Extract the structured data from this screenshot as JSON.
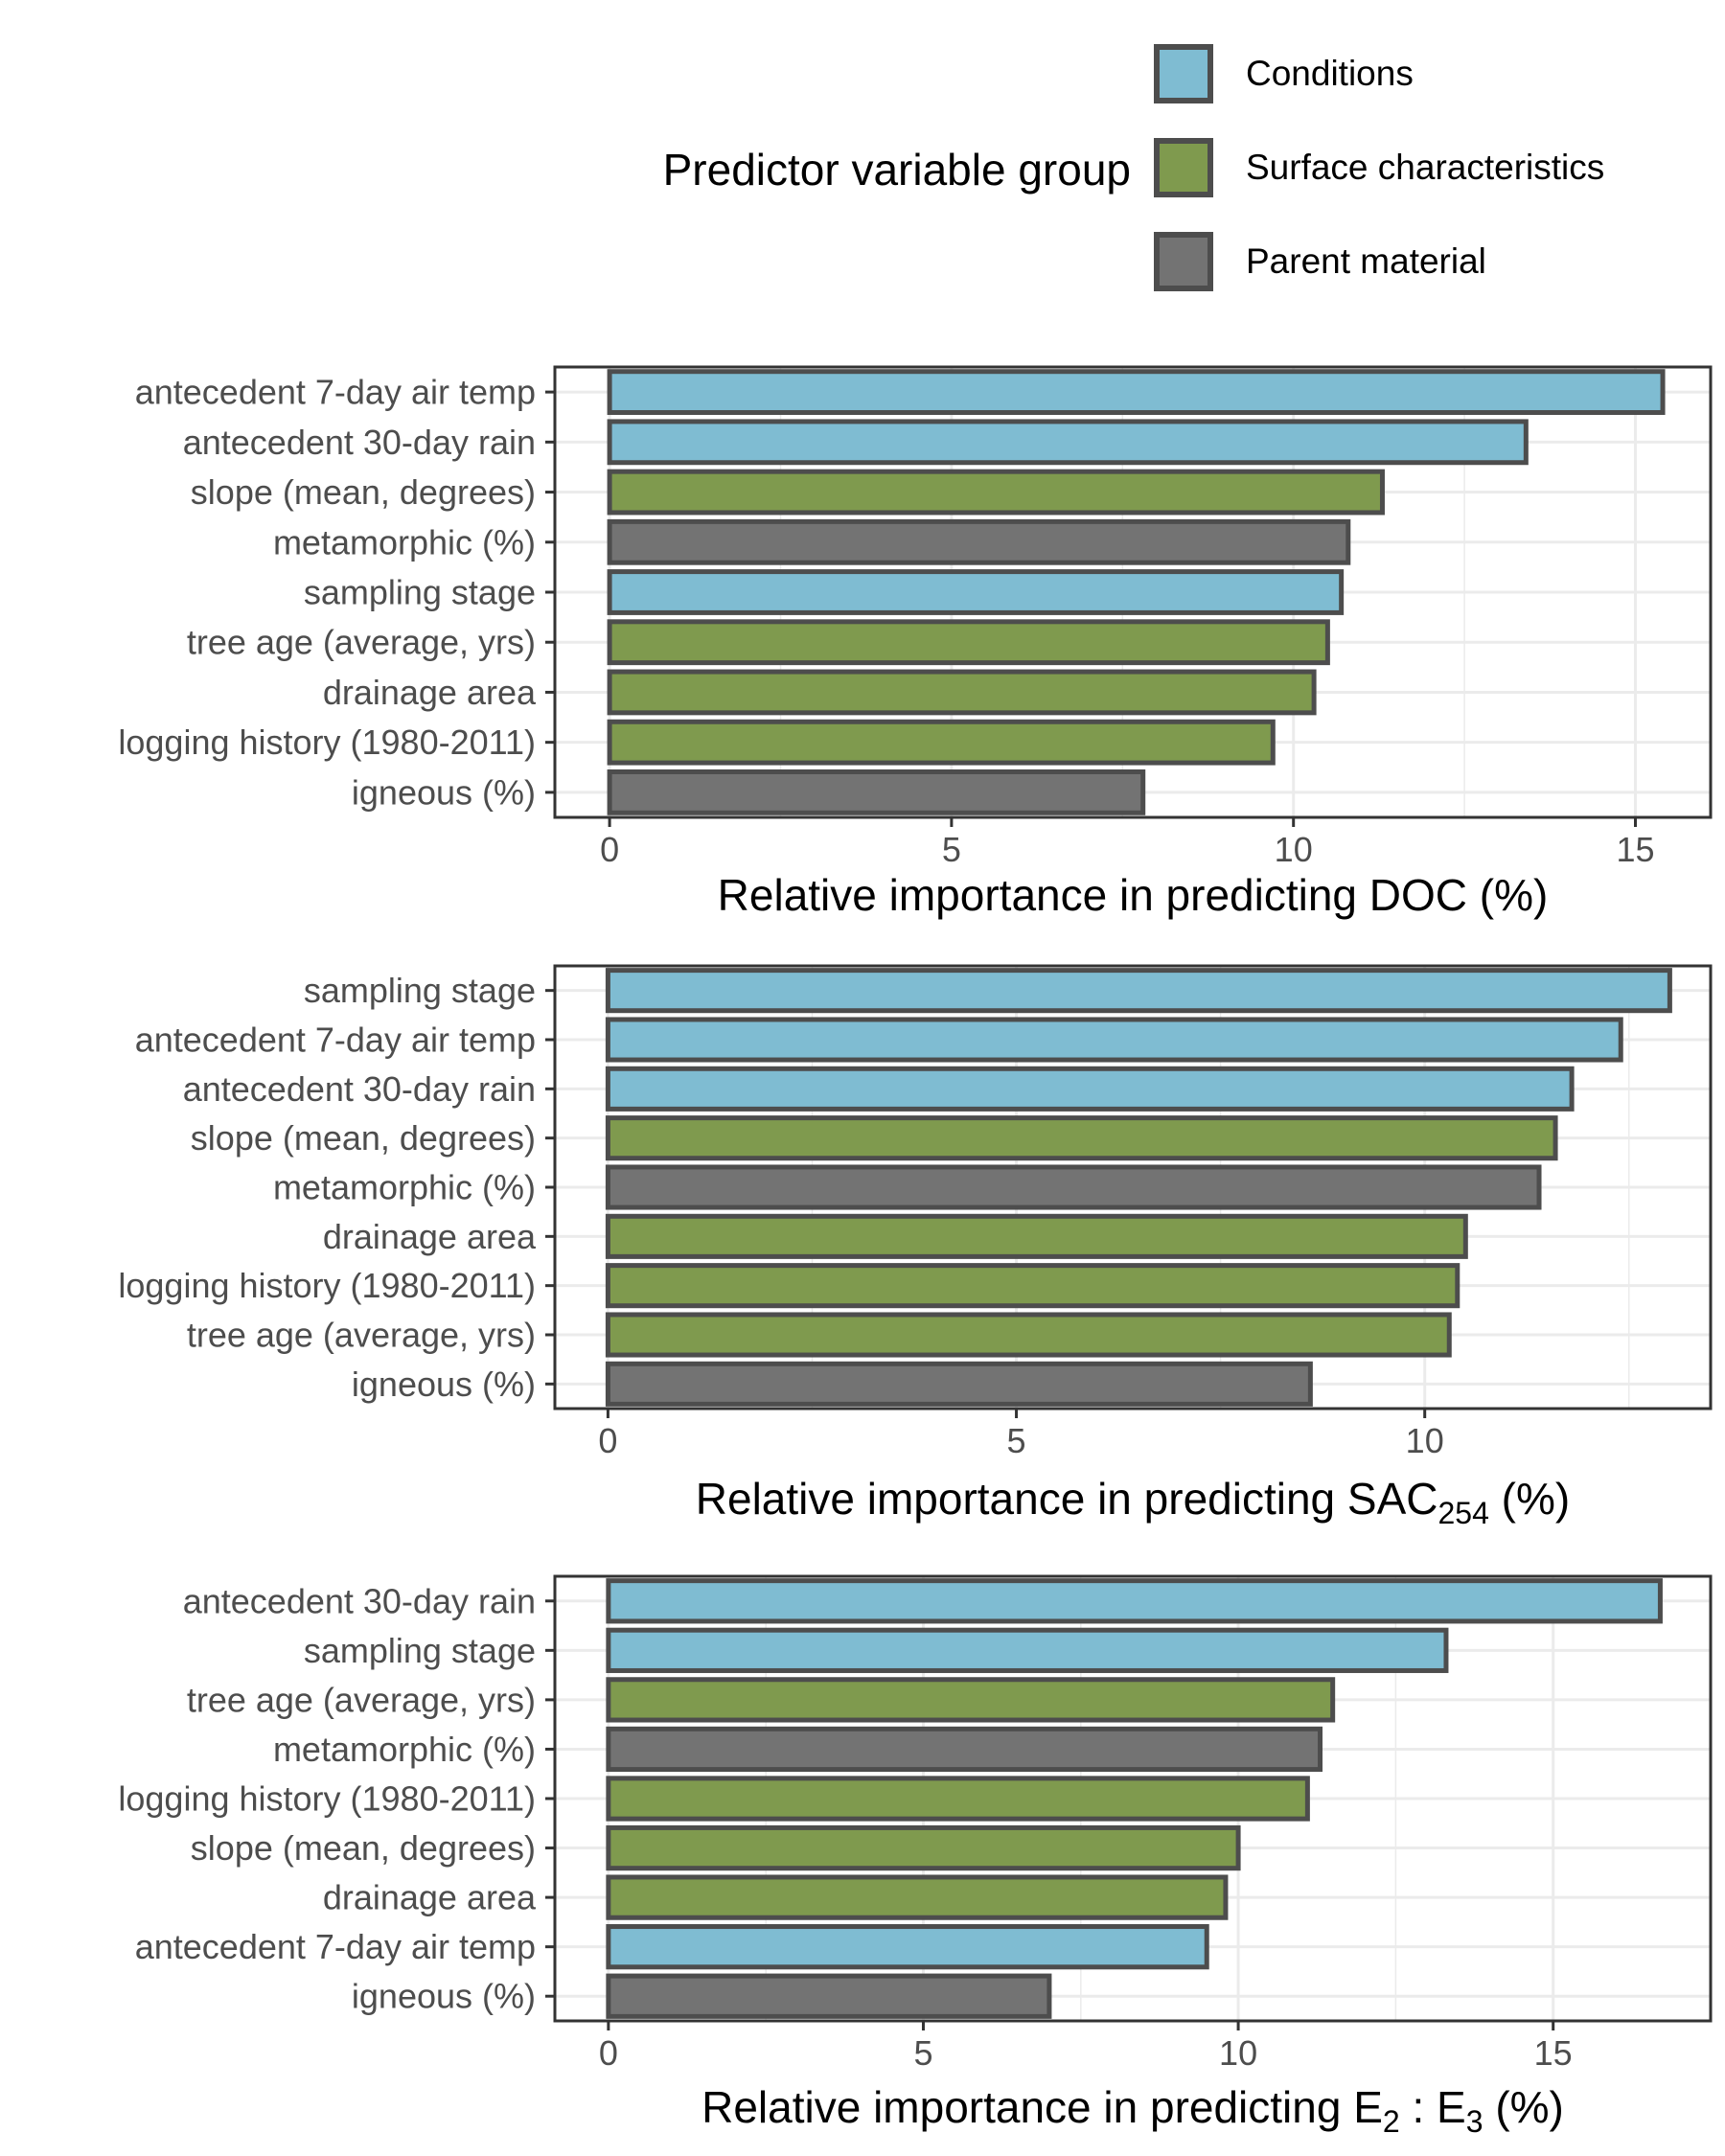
{
  "legend": {
    "title": "Predictor variable group",
    "items": [
      {
        "group": "Conditions",
        "label": "Conditions",
        "color": "#7fbcd2"
      },
      {
        "group": "Surface",
        "label": "Surface characteristics",
        "color": "#7f9a4e"
      },
      {
        "group": "Parent",
        "label": "Parent material",
        "color": "#737373"
      }
    ]
  },
  "colors": {
    "bar_outline": "#4d4d4d",
    "grid": "#ebebeb",
    "panel_border": "#333333",
    "tick_label": "#4d4d4d",
    "axis_title": "#000000"
  },
  "chart_data": [
    {
      "type": "bar",
      "orientation": "horizontal",
      "xlabel": "Relative importance in predicting DOC (%)",
      "xlabel_parts": [
        {
          "text": "Relative importance in predicting DOC (%)"
        }
      ],
      "xlim": [
        -0.8,
        16.1
      ],
      "xticks": [
        0,
        5,
        10,
        15
      ],
      "grid": true,
      "categories": [
        "antecedent 7-day air temp",
        "antecedent 30-day rain",
        "slope (mean, degrees)",
        "metamorphic (%)",
        "sampling stage",
        "tree age (average, yrs)",
        "drainage area",
        "logging history (1980-2011)",
        "igneous (%)"
      ],
      "values": [
        15.4,
        13.4,
        11.3,
        10.8,
        10.7,
        10.5,
        10.3,
        9.7,
        7.8
      ],
      "groups": [
        "Conditions",
        "Conditions",
        "Surface",
        "Parent",
        "Conditions",
        "Surface",
        "Surface",
        "Surface",
        "Parent"
      ]
    },
    {
      "type": "bar",
      "orientation": "horizontal",
      "xlabel": "Relative importance in predicting SAC254 (%)",
      "xlabel_parts": [
        {
          "text": "Relative importance in predicting SAC"
        },
        {
          "text": "254",
          "sub": true
        },
        {
          "text": " (%)"
        }
      ],
      "xlim": [
        -0.65,
        13.5
      ],
      "xticks": [
        0,
        5,
        10
      ],
      "grid": true,
      "categories": [
        "sampling stage",
        "antecedent 7-day air temp",
        "antecedent 30-day rain",
        "slope (mean, degrees)",
        "metamorphic (%)",
        "drainage area",
        "logging history (1980-2011)",
        "tree age (average, yrs)",
        "igneous (%)"
      ],
      "values": [
        13.0,
        12.4,
        11.8,
        11.6,
        11.4,
        10.5,
        10.4,
        10.3,
        8.6
      ],
      "groups": [
        "Conditions",
        "Conditions",
        "Conditions",
        "Surface",
        "Parent",
        "Surface",
        "Surface",
        "Surface",
        "Parent"
      ]
    },
    {
      "type": "bar",
      "orientation": "horizontal",
      "xlabel": "Relative importance in predicting E2 : E3 (%)",
      "xlabel_parts": [
        {
          "text": "Relative importance in predicting E"
        },
        {
          "text": "2",
          "sub": true
        },
        {
          "text": " : E"
        },
        {
          "text": "3",
          "sub": true
        },
        {
          "text": " (%)"
        }
      ],
      "xlim": [
        -0.85,
        17.5
      ],
      "xticks": [
        0,
        5,
        10,
        15
      ],
      "grid": true,
      "categories": [
        "antecedent 30-day rain",
        "sampling stage",
        "tree age (average, yrs)",
        "metamorphic (%)",
        "logging history (1980-2011)",
        "slope (mean, degrees)",
        "drainage area",
        "antecedent 7-day air temp",
        "igneous (%)"
      ],
      "values": [
        16.7,
        13.3,
        11.5,
        11.3,
        11.1,
        10.0,
        9.8,
        9.5,
        7.0
      ],
      "groups": [
        "Conditions",
        "Conditions",
        "Surface",
        "Parent",
        "Surface",
        "Surface",
        "Surface",
        "Conditions",
        "Parent"
      ]
    }
  ]
}
